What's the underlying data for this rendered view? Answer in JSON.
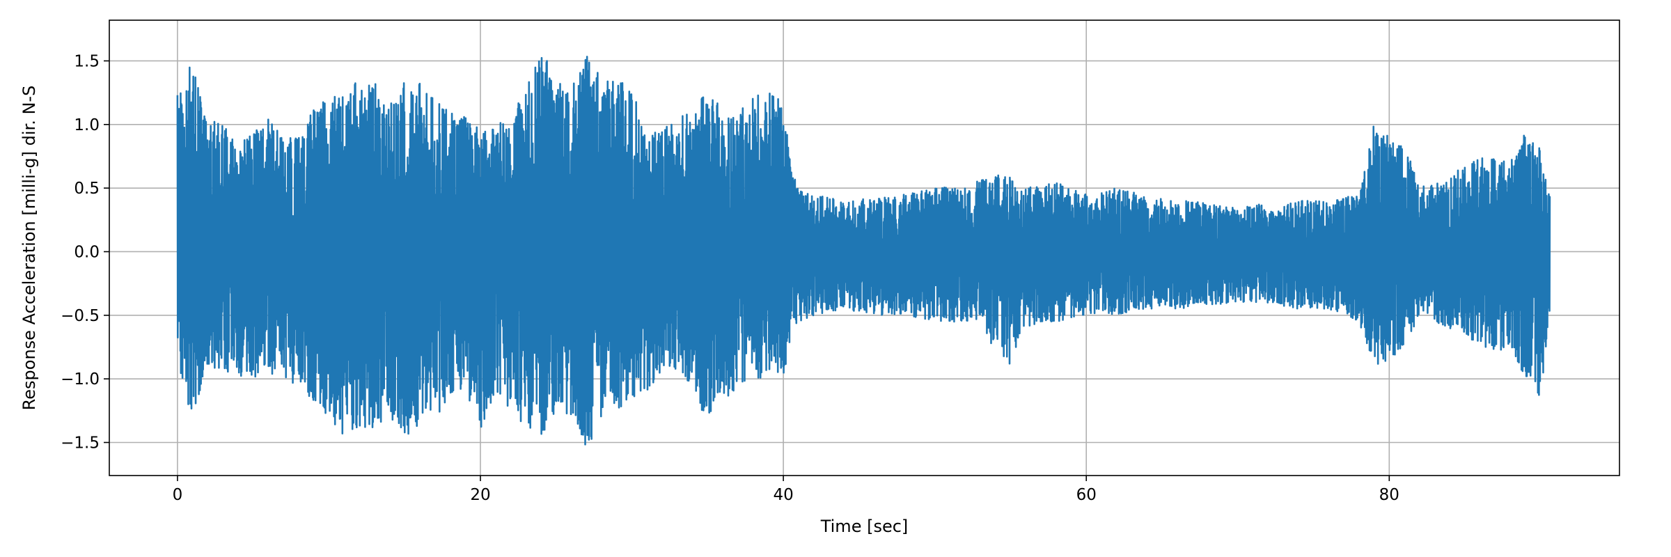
{
  "chart_data": {
    "type": "line",
    "title": "",
    "xlabel": "Time [sec]",
    "ylabel": "Response Acceleration [milli-g] dir. N-S",
    "xlim": [
      -4.5,
      95.2
    ],
    "ylim": [
      -1.76,
      1.82
    ],
    "x_ticks": [
      0,
      20,
      40,
      60,
      80
    ],
    "x_tick_labels": [
      "0",
      "20",
      "40",
      "60",
      "80"
    ],
    "y_ticks": [
      -1.5,
      -1.0,
      -0.5,
      0.0,
      0.5,
      1.0,
      1.5
    ],
    "y_tick_labels": [
      "−1.5",
      "−1.0",
      "−0.5",
      "0.0",
      "0.5",
      "1.0",
      "1.5"
    ],
    "grid": true,
    "line_color": "#1f77b4",
    "x_range": [
      0,
      90.6
    ],
    "series": [
      {
        "color": "#1f77b4",
        "envelope": {
          "x": [
            0,
            0.5,
            1,
            2,
            3,
            4,
            5,
            6,
            7,
            8,
            9,
            10,
            11,
            12,
            13,
            14,
            15,
            16,
            17,
            18,
            19,
            20,
            21,
            22,
            23,
            24,
            25,
            26,
            27,
            28,
            29,
            30,
            31,
            32,
            33,
            34,
            35,
            36,
            37,
            38,
            39,
            40,
            40.5,
            41,
            42,
            44,
            46,
            48,
            50,
            52,
            54,
            55,
            56,
            58,
            60,
            62,
            64,
            66,
            68,
            70,
            72,
            74,
            76,
            78,
            79,
            80,
            81,
            82,
            84,
            86,
            88,
            89,
            90,
            90.6
          ],
          "upper": [
            1.27,
            1.28,
            1.58,
            1.05,
            1.0,
            0.88,
            0.93,
            1.05,
            0.95,
            0.9,
            1.15,
            1.2,
            1.25,
            1.35,
            1.35,
            1.15,
            1.35,
            1.33,
            1.2,
            1.1,
            1.1,
            0.95,
            1.0,
            1.05,
            1.3,
            1.64,
            1.35,
            1.28,
            1.58,
            1.35,
            1.4,
            1.3,
            0.95,
            1.0,
            1.05,
            1.1,
            1.3,
            1.1,
            1.05,
            1.3,
            1.25,
            1.2,
            0.65,
            0.5,
            0.45,
            0.4,
            0.42,
            0.45,
            0.5,
            0.52,
            0.6,
            0.62,
            0.5,
            0.55,
            0.45,
            0.5,
            0.45,
            0.4,
            0.4,
            0.35,
            0.38,
            0.4,
            0.4,
            0.45,
            1.02,
            0.9,
            0.85,
            0.5,
            0.6,
            0.75,
            0.7,
            0.95,
            0.8,
            0.45
          ],
          "lower": [
            -0.92,
            -1.1,
            -1.35,
            -0.9,
            -0.95,
            -1.0,
            -1.0,
            -0.95,
            -1.0,
            -1.05,
            -1.2,
            -1.3,
            -1.45,
            -1.4,
            -1.38,
            -1.3,
            -1.47,
            -1.35,
            -1.3,
            -1.2,
            -1.1,
            -1.4,
            -1.1,
            -1.25,
            -1.38,
            -1.45,
            -1.4,
            -1.35,
            -1.6,
            -1.3,
            -1.25,
            -1.15,
            -1.1,
            -1.0,
            -0.95,
            -1.05,
            -1.38,
            -1.2,
            -1.05,
            -1.0,
            -1.0,
            -1.0,
            -0.65,
            -0.55,
            -0.5,
            -0.45,
            -0.5,
            -0.5,
            -0.55,
            -0.55,
            -0.75,
            -0.9,
            -0.6,
            -0.55,
            -0.5,
            -0.5,
            -0.45,
            -0.45,
            -0.42,
            -0.4,
            -0.4,
            -0.45,
            -0.45,
            -0.55,
            -0.9,
            -0.85,
            -0.75,
            -0.5,
            -0.6,
            -0.75,
            -0.8,
            -1.0,
            -1.23,
            -0.45
          ]
        }
      }
    ]
  }
}
